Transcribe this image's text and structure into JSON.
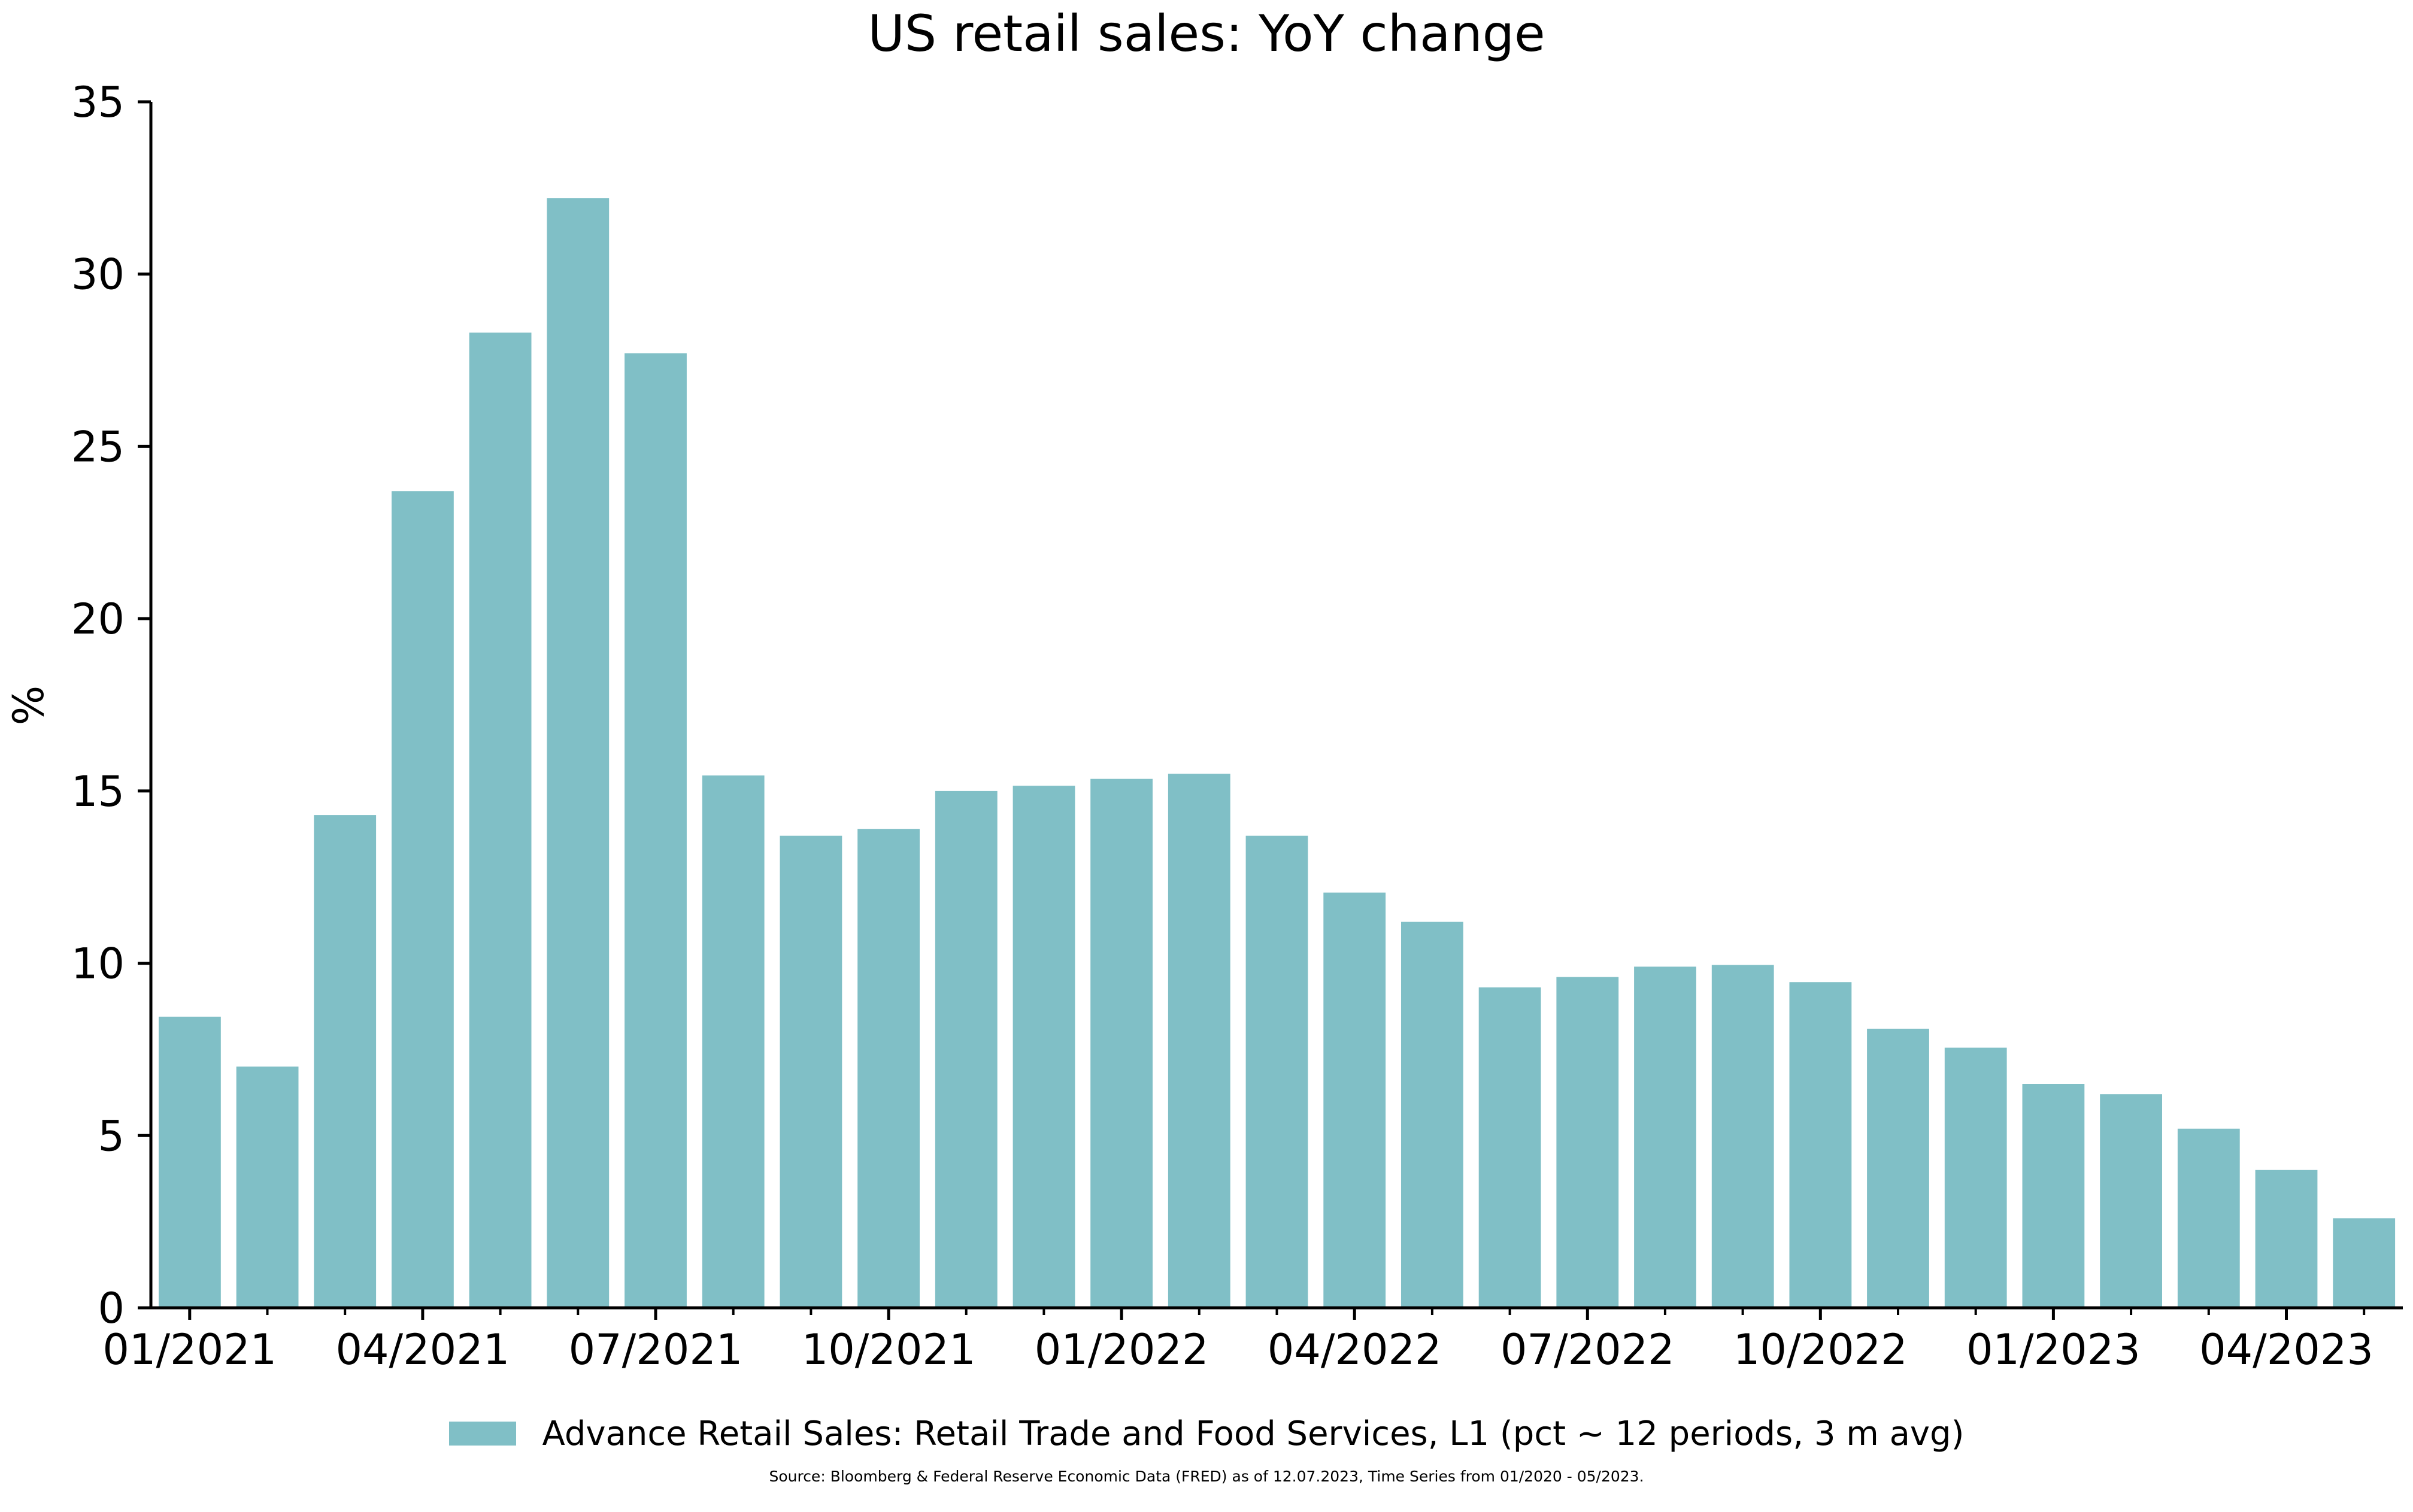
{
  "chart_data": {
    "type": "bar",
    "title": "US retail sales: YoY change",
    "xlabel": "",
    "ylabel": "%",
    "ylim": [
      0,
      35
    ],
    "yticks": [
      0,
      5,
      10,
      15,
      20,
      25,
      30,
      35
    ],
    "grid": false,
    "legend_position": "bottom-center",
    "bar_color": "#80bfc6",
    "categories": [
      "01/2021",
      "02/2021",
      "03/2021",
      "04/2021",
      "05/2021",
      "06/2021",
      "07/2021",
      "08/2021",
      "09/2021",
      "10/2021",
      "11/2021",
      "12/2021",
      "01/2022",
      "02/2022",
      "03/2022",
      "04/2022",
      "05/2022",
      "06/2022",
      "07/2022",
      "08/2022",
      "09/2022",
      "10/2022",
      "11/2022",
      "12/2022",
      "01/2023",
      "02/2023",
      "03/2023",
      "04/2023",
      "05/2023"
    ],
    "xtick_labels": [
      "01/2021",
      "04/2021",
      "07/2021",
      "10/2021",
      "01/2022",
      "04/2022",
      "07/2022",
      "10/2022",
      "01/2023",
      "04/2023"
    ],
    "series": [
      {
        "name": "Advance Retail Sales: Retail Trade and Food Services, L1 (pct ~ 12 periods, 3 m avg)",
        "values": [
          8.45,
          7.0,
          14.3,
          23.7,
          28.3,
          32.2,
          27.7,
          15.45,
          13.7,
          13.9,
          15.0,
          15.15,
          15.35,
          15.5,
          13.7,
          12.05,
          11.2,
          9.3,
          9.6,
          9.9,
          9.95,
          9.45,
          8.1,
          7.55,
          6.5,
          6.2,
          5.2,
          4.0,
          2.6
        ]
      }
    ],
    "source_note": "Source: Bloomberg & Federal Reserve Economic Data (FRED) as of 12.07.2023, Time Series from 01/2020 - 05/2023."
  }
}
